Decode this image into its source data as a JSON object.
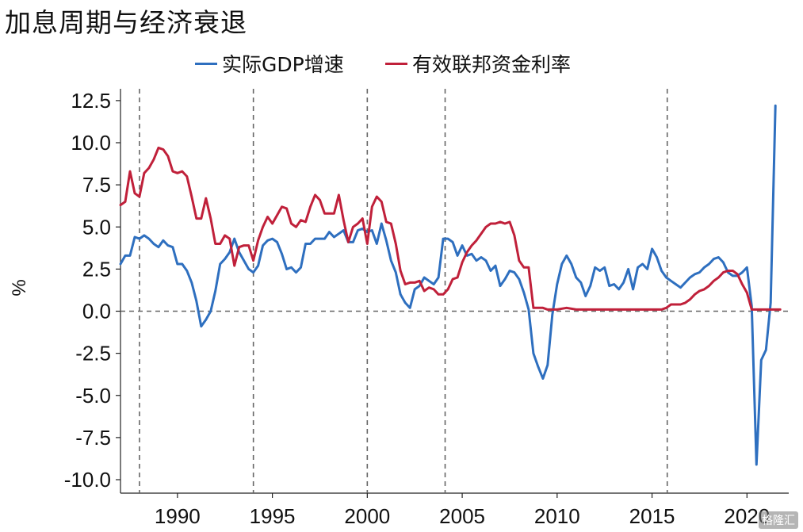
{
  "chart_data": {
    "type": "line",
    "title": "加息周期与经济衰退",
    "xlabel": "",
    "ylabel": "%",
    "xlim": [
      1987.0,
      2022.2
    ],
    "ylim": [
      -10.8,
      13.2
    ],
    "yticks": [
      12.5,
      10.0,
      7.5,
      5.0,
      2.5,
      0.0,
      -2.5,
      -5.0,
      -7.5,
      -10.0
    ],
    "ytick_labels": [
      "12.5",
      "10.0",
      "7.5",
      "5.0",
      "2.5",
      "0.0",
      "-2.5",
      "-5.0",
      "-7.5",
      "-10.0"
    ],
    "xticks": [
      1990,
      1995,
      2000,
      2005,
      2010,
      2015,
      2020
    ],
    "xtick_labels": [
      "1990",
      "1995",
      "2000",
      "2005",
      "2010",
      "2015",
      "2020"
    ],
    "zero_line": 0.0,
    "vlines": [
      1988.0,
      1994.0,
      2000.0,
      2004.1,
      2015.8
    ],
    "legend_position": "top-center",
    "series": [
      {
        "name": "实际GDP增速",
        "color": "#2e6fbf",
        "points": [
          [
            1987.0,
            2.8
          ],
          [
            1987.25,
            3.3
          ],
          [
            1987.5,
            3.3
          ],
          [
            1987.75,
            4.4
          ],
          [
            1988.0,
            4.3
          ],
          [
            1988.25,
            4.5
          ],
          [
            1988.5,
            4.3
          ],
          [
            1988.75,
            4.0
          ],
          [
            1989.0,
            3.8
          ],
          [
            1989.25,
            4.2
          ],
          [
            1989.5,
            3.9
          ],
          [
            1989.75,
            3.8
          ],
          [
            1990.0,
            2.8
          ],
          [
            1990.25,
            2.8
          ],
          [
            1990.5,
            2.4
          ],
          [
            1990.75,
            1.7
          ],
          [
            1991.0,
            0.6
          ],
          [
            1991.25,
            -0.9
          ],
          [
            1991.5,
            -0.5
          ],
          [
            1991.75,
            0.0
          ],
          [
            1992.0,
            1.2
          ],
          [
            1992.25,
            2.8
          ],
          [
            1992.5,
            3.1
          ],
          [
            1992.75,
            3.5
          ],
          [
            1993.0,
            4.3
          ],
          [
            1993.25,
            3.5
          ],
          [
            1993.5,
            3.0
          ],
          [
            1993.75,
            2.5
          ],
          [
            1994.0,
            2.3
          ],
          [
            1994.25,
            2.7
          ],
          [
            1994.5,
            3.9
          ],
          [
            1994.75,
            4.2
          ],
          [
            1995.0,
            4.3
          ],
          [
            1995.25,
            4.1
          ],
          [
            1995.5,
            3.4
          ],
          [
            1995.75,
            2.5
          ],
          [
            1996.0,
            2.6
          ],
          [
            1996.25,
            2.3
          ],
          [
            1996.5,
            2.6
          ],
          [
            1996.75,
            4.0
          ],
          [
            1997.0,
            4.0
          ],
          [
            1997.25,
            4.3
          ],
          [
            1997.5,
            4.3
          ],
          [
            1997.75,
            4.3
          ],
          [
            1998.0,
            4.7
          ],
          [
            1998.25,
            4.4
          ],
          [
            1998.5,
            4.6
          ],
          [
            1998.75,
            4.8
          ],
          [
            1999.0,
            4.1
          ],
          [
            1999.25,
            4.1
          ],
          [
            1999.5,
            4.8
          ],
          [
            1999.75,
            4.9
          ],
          [
            2000.0,
            4.7
          ],
          [
            2000.25,
            4.8
          ],
          [
            2000.5,
            4.0
          ],
          [
            2000.75,
            5.2
          ],
          [
            2001.0,
            4.2
          ],
          [
            2001.25,
            3.0
          ],
          [
            2001.5,
            2.3
          ],
          [
            2001.75,
            1.0
          ],
          [
            2002.0,
            0.5
          ],
          [
            2002.25,
            0.2
          ],
          [
            2002.5,
            1.3
          ],
          [
            2002.75,
            1.5
          ],
          [
            2003.0,
            2.0
          ],
          [
            2003.25,
            1.8
          ],
          [
            2003.5,
            1.6
          ],
          [
            2003.75,
            2.0
          ],
          [
            2004.0,
            4.3
          ],
          [
            2004.25,
            4.3
          ],
          [
            2004.5,
            4.1
          ],
          [
            2004.75,
            3.3
          ],
          [
            2005.0,
            3.9
          ],
          [
            2005.25,
            3.3
          ],
          [
            2005.5,
            3.4
          ],
          [
            2005.75,
            3.0
          ],
          [
            2006.0,
            3.2
          ],
          [
            2006.25,
            3.0
          ],
          [
            2006.5,
            2.4
          ],
          [
            2006.75,
            2.7
          ],
          [
            2007.0,
            1.5
          ],
          [
            2007.25,
            1.9
          ],
          [
            2007.5,
            2.4
          ],
          [
            2007.75,
            2.3
          ],
          [
            2008.0,
            1.9
          ],
          [
            2008.25,
            1.1
          ],
          [
            2008.5,
            0.1
          ],
          [
            2008.75,
            -2.5
          ],
          [
            2009.0,
            -3.3
          ],
          [
            2009.25,
            -4.0
          ],
          [
            2009.5,
            -3.2
          ],
          [
            2009.75,
            -0.2
          ],
          [
            2010.0,
            1.6
          ],
          [
            2010.25,
            2.8
          ],
          [
            2010.5,
            3.3
          ],
          [
            2010.75,
            2.8
          ],
          [
            2011.0,
            2.0
          ],
          [
            2011.25,
            1.7
          ],
          [
            2011.5,
            0.9
          ],
          [
            2011.75,
            1.5
          ],
          [
            2012.0,
            2.6
          ],
          [
            2012.25,
            2.4
          ],
          [
            2012.5,
            2.6
          ],
          [
            2012.75,
            1.5
          ],
          [
            2013.0,
            1.6
          ],
          [
            2013.25,
            1.3
          ],
          [
            2013.5,
            1.7
          ],
          [
            2013.75,
            2.5
          ],
          [
            2014.0,
            1.3
          ],
          [
            2014.25,
            2.6
          ],
          [
            2014.5,
            2.8
          ],
          [
            2014.75,
            2.5
          ],
          [
            2015.0,
            3.7
          ],
          [
            2015.25,
            3.2
          ],
          [
            2015.5,
            2.4
          ],
          [
            2015.75,
            2.0
          ],
          [
            2016.0,
            1.8
          ],
          [
            2016.25,
            1.6
          ],
          [
            2016.5,
            1.4
          ],
          [
            2016.75,
            1.7
          ],
          [
            2017.0,
            2.0
          ],
          [
            2017.25,
            2.2
          ],
          [
            2017.5,
            2.3
          ],
          [
            2017.75,
            2.6
          ],
          [
            2018.0,
            2.8
          ],
          [
            2018.25,
            3.1
          ],
          [
            2018.5,
            3.2
          ],
          [
            2018.75,
            2.9
          ],
          [
            2019.0,
            2.3
          ],
          [
            2019.25,
            2.1
          ],
          [
            2019.5,
            2.1
          ],
          [
            2019.75,
            2.3
          ],
          [
            2020.0,
            2.6
          ],
          [
            2020.25,
            0.3
          ],
          [
            2020.5,
            -9.1
          ],
          [
            2020.75,
            -2.9
          ],
          [
            2021.0,
            -2.3
          ],
          [
            2021.25,
            0.5
          ],
          [
            2021.5,
            12.2
          ]
        ]
      },
      {
        "name": "有效联邦资金利率",
        "color": "#c0203a",
        "points": [
          [
            1987.0,
            6.3
          ],
          [
            1987.25,
            6.5
          ],
          [
            1987.5,
            8.3
          ],
          [
            1987.75,
            7.0
          ],
          [
            1988.0,
            6.8
          ],
          [
            1988.25,
            8.2
          ],
          [
            1988.5,
            8.5
          ],
          [
            1988.75,
            9.0
          ],
          [
            1989.0,
            9.7
          ],
          [
            1989.25,
            9.6
          ],
          [
            1989.5,
            9.2
          ],
          [
            1989.75,
            8.3
          ],
          [
            1990.0,
            8.2
          ],
          [
            1990.25,
            8.3
          ],
          [
            1990.5,
            8.0
          ],
          [
            1990.75,
            6.8
          ],
          [
            1991.0,
            5.5
          ],
          [
            1991.25,
            5.5
          ],
          [
            1991.5,
            6.7
          ],
          [
            1991.75,
            5.5
          ],
          [
            1992.0,
            4.0
          ],
          [
            1992.25,
            4.0
          ],
          [
            1992.5,
            4.5
          ],
          [
            1992.75,
            4.3
          ],
          [
            1993.0,
            2.7
          ],
          [
            1993.25,
            3.8
          ],
          [
            1993.5,
            3.9
          ],
          [
            1993.75,
            3.9
          ],
          [
            1994.0,
            3.0
          ],
          [
            1994.25,
            4.2
          ],
          [
            1994.5,
            5.0
          ],
          [
            1994.75,
            5.6
          ],
          [
            1995.0,
            5.2
          ],
          [
            1995.25,
            5.7
          ],
          [
            1995.5,
            6.2
          ],
          [
            1995.75,
            6.1
          ],
          [
            1996.0,
            5.2
          ],
          [
            1996.25,
            5.0
          ],
          [
            1996.5,
            5.4
          ],
          [
            1996.75,
            5.3
          ],
          [
            1997.0,
            6.2
          ],
          [
            1997.25,
            6.9
          ],
          [
            1997.5,
            6.6
          ],
          [
            1997.75,
            5.8
          ],
          [
            1998.0,
            5.8
          ],
          [
            1998.25,
            5.8
          ],
          [
            1998.5,
            6.9
          ],
          [
            1998.75,
            5.4
          ],
          [
            1999.0,
            4.1
          ],
          [
            1999.25,
            5.0
          ],
          [
            1999.5,
            5.2
          ],
          [
            1999.75,
            5.5
          ],
          [
            2000.0,
            4.0
          ],
          [
            2000.25,
            6.2
          ],
          [
            2000.5,
            6.8
          ],
          [
            2000.75,
            6.5
          ],
          [
            2001.0,
            5.3
          ],
          [
            2001.25,
            5.2
          ],
          [
            2001.5,
            4.0
          ],
          [
            2001.75,
            2.4
          ],
          [
            2002.0,
            1.6
          ],
          [
            2002.25,
            1.7
          ],
          [
            2002.5,
            1.7
          ],
          [
            2002.75,
            1.8
          ],
          [
            2003.0,
            1.2
          ],
          [
            2003.25,
            1.4
          ],
          [
            2003.5,
            1.3
          ],
          [
            2003.75,
            1.0
          ],
          [
            2004.0,
            1.0
          ],
          [
            2004.25,
            1.3
          ],
          [
            2004.5,
            1.9
          ],
          [
            2004.75,
            2.0
          ],
          [
            2005.0,
            2.9
          ],
          [
            2005.25,
            3.5
          ],
          [
            2005.5,
            3.9
          ],
          [
            2005.75,
            4.2
          ],
          [
            2006.0,
            4.6
          ],
          [
            2006.25,
            5.0
          ],
          [
            2006.5,
            5.2
          ],
          [
            2006.75,
            5.2
          ],
          [
            2007.0,
            5.3
          ],
          [
            2007.25,
            5.2
          ],
          [
            2007.5,
            5.3
          ],
          [
            2007.75,
            4.5
          ],
          [
            2008.0,
            3.0
          ],
          [
            2008.25,
            2.6
          ],
          [
            2008.5,
            2.6
          ],
          [
            2008.75,
            0.2
          ],
          [
            2009.0,
            0.2
          ],
          [
            2009.25,
            0.2
          ],
          [
            2009.5,
            0.1
          ],
          [
            2009.75,
            0.1
          ],
          [
            2010.0,
            0.1
          ],
          [
            2010.5,
            0.2
          ],
          [
            2011.0,
            0.1
          ],
          [
            2011.5,
            0.1
          ],
          [
            2012.0,
            0.1
          ],
          [
            2012.5,
            0.1
          ],
          [
            2013.0,
            0.1
          ],
          [
            2013.5,
            0.1
          ],
          [
            2014.0,
            0.1
          ],
          [
            2014.5,
            0.1
          ],
          [
            2015.0,
            0.1
          ],
          [
            2015.5,
            0.1
          ],
          [
            2015.75,
            0.2
          ],
          [
            2016.0,
            0.4
          ],
          [
            2016.5,
            0.4
          ],
          [
            2016.75,
            0.5
          ],
          [
            2017.0,
            0.7
          ],
          [
            2017.25,
            1.0
          ],
          [
            2017.5,
            1.2
          ],
          [
            2017.75,
            1.3
          ],
          [
            2018.0,
            1.5
          ],
          [
            2018.25,
            1.8
          ],
          [
            2018.5,
            2.0
          ],
          [
            2018.75,
            2.3
          ],
          [
            2019.0,
            2.4
          ],
          [
            2019.25,
            2.4
          ],
          [
            2019.5,
            2.2
          ],
          [
            2019.75,
            1.6
          ],
          [
            2020.0,
            1.1
          ],
          [
            2020.25,
            0.1
          ],
          [
            2020.5,
            0.1
          ],
          [
            2020.75,
            0.1
          ],
          [
            2021.0,
            0.1
          ],
          [
            2021.5,
            0.1
          ],
          [
            2021.75,
            0.1
          ]
        ]
      }
    ]
  },
  "watermark": "格隆汇"
}
